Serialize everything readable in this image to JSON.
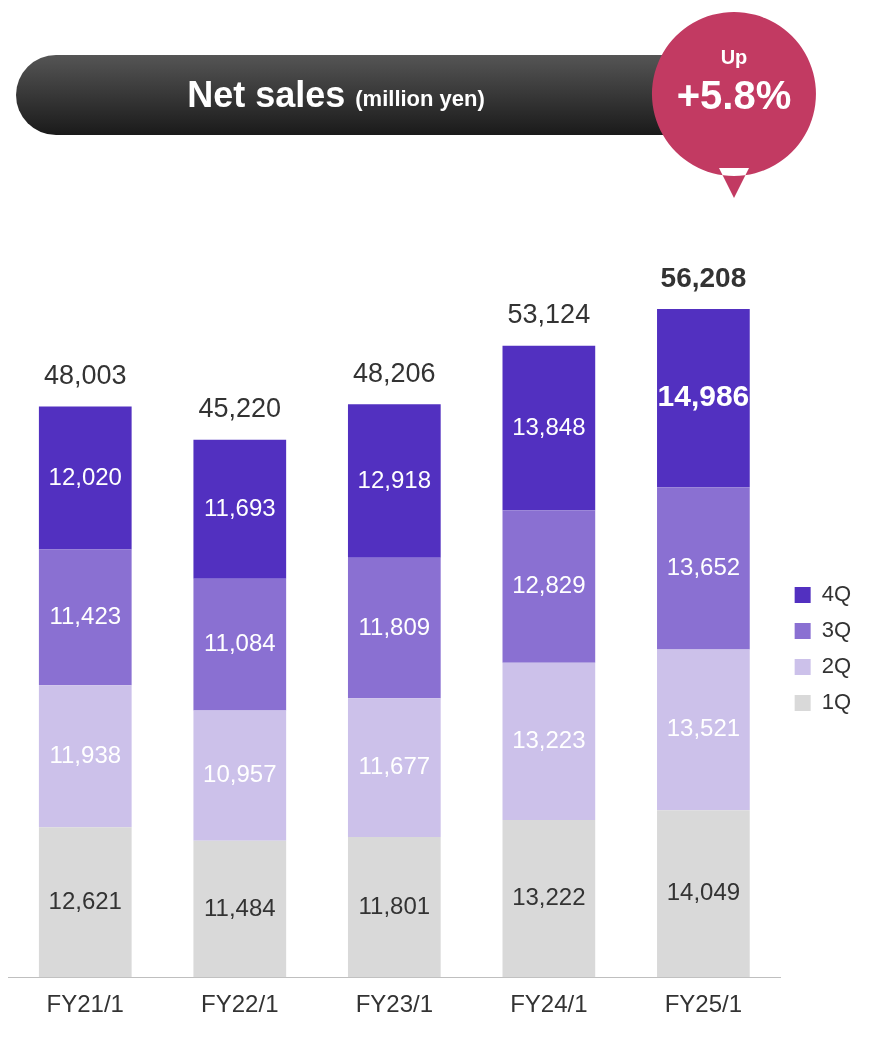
{
  "chart_data": {
    "type": "bar",
    "title": "Net sales",
    "subtitle": "(million yen)",
    "annotations": [
      "Up",
      "+5.8%"
    ],
    "categories": [
      "FY21/1",
      "FY22/1",
      "FY23/1",
      "FY24/1",
      "FY25/1"
    ],
    "stacked": true,
    "legend": "right",
    "grid": false,
    "tick_labels": "x",
    "series": [
      {
        "name": "1Q",
        "color": "#d9d9d9",
        "values": [
          12621,
          11484,
          11801,
          13222,
          14049
        ],
        "value_labels": [
          "12,621",
          "11,484",
          "11,801",
          "13,222",
          "14,049"
        ]
      },
      {
        "name": "2Q",
        "color": "#ccc1ea",
        "values": [
          11938,
          10957,
          11677,
          13223,
          13521
        ],
        "value_labels": [
          "11,938",
          "10,957",
          "11,677",
          "13,223",
          "13,521"
        ]
      },
      {
        "name": "3Q",
        "color": "#8a70d2",
        "values": [
          11423,
          11084,
          11809,
          12829,
          13652
        ],
        "value_labels": [
          "11,423",
          "11,084",
          "11,809",
          "12,829",
          "13,652"
        ]
      },
      {
        "name": "4Q",
        "color": "#5230c0",
        "values": [
          12020,
          11693,
          12918,
          13848,
          14986
        ],
        "value_labels": [
          "12,020",
          "11,693",
          "12,918",
          "13,848",
          "14,986"
        ]
      }
    ],
    "totals": [
      "48,003",
      "45,220",
      "48,206",
      "53,124",
      "56,208"
    ]
  }
}
